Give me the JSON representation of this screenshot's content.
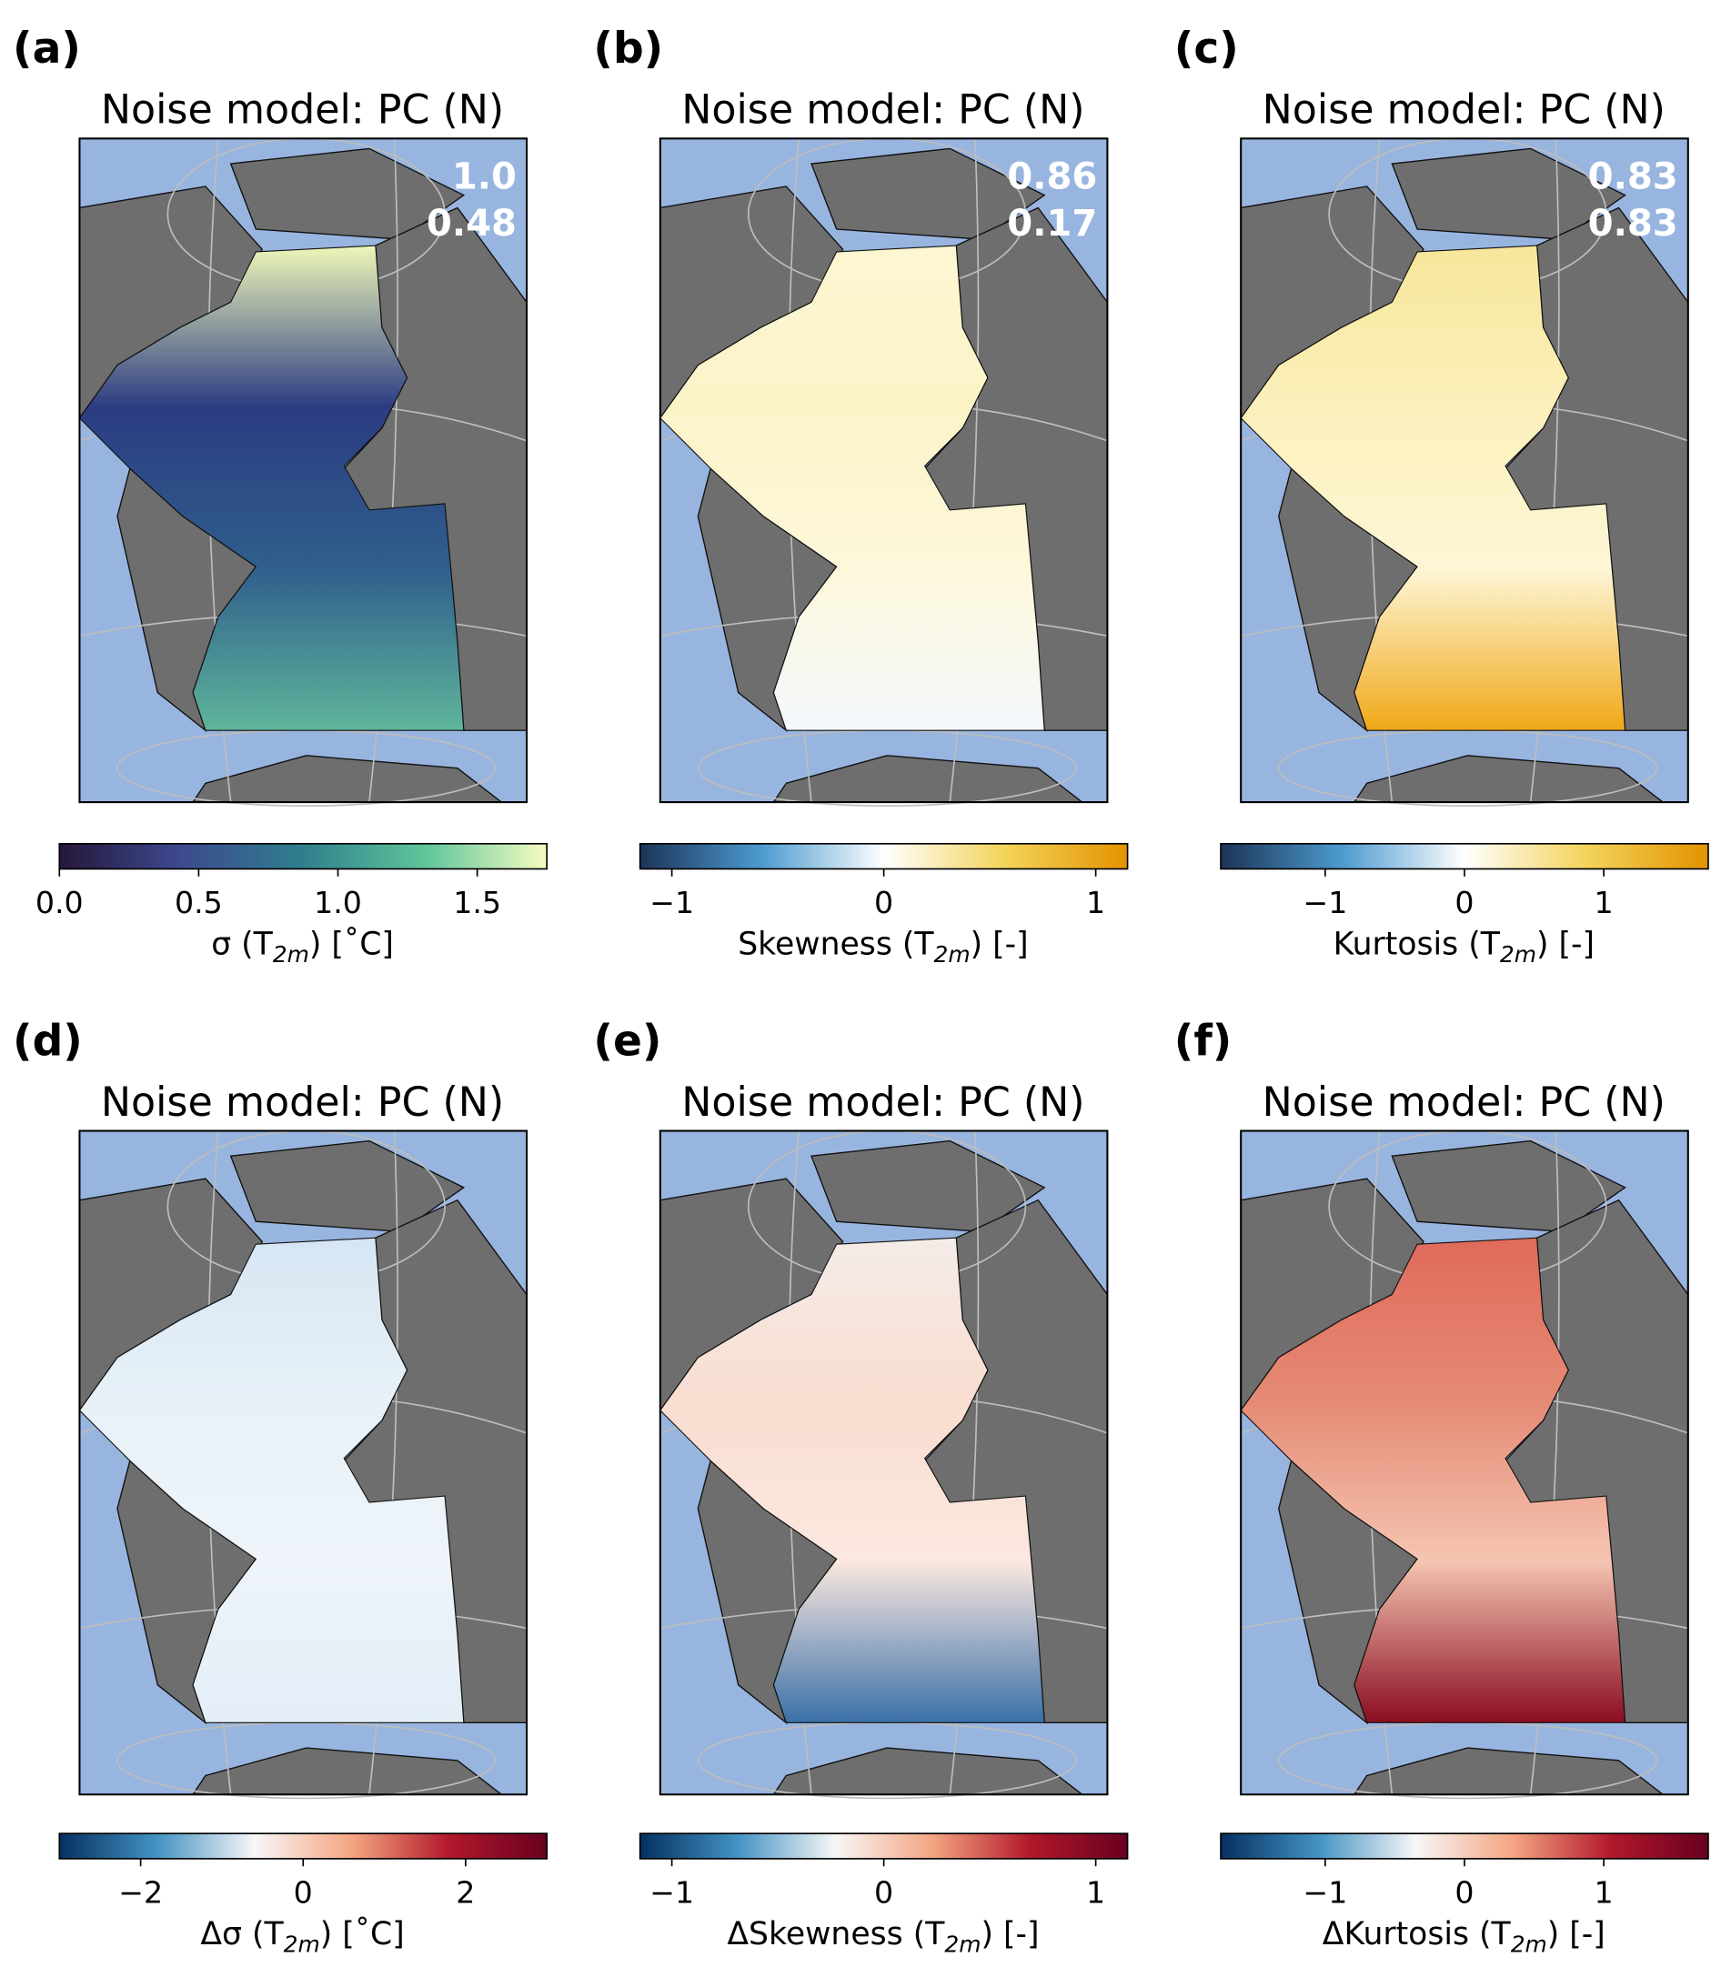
{
  "chart_data": [
    {
      "type": "map",
      "panel_label": "(a)",
      "title": "Noise model: PC (N)",
      "annotations": [
        "1.0",
        "0.48"
      ],
      "xlabel": {
        "pre": "σ (T",
        "sub": "2m",
        "post": ") [˚C]"
      },
      "xlim": [
        0,
        1.75
      ],
      "xticks": [
        {
          "value": 0,
          "label": "0.0"
        },
        0.5,
        {
          "value": 1,
          "label": "1.0"
        },
        1.5
      ],
      "colormap": [
        "#26173a",
        "#3d4a8f",
        "#2f7f8c",
        "#5fc59b",
        "#f6fcc2"
      ],
      "field_colors": [
        "#eef7b8",
        "#2c3c82",
        "#2f5f8c",
        "#5fb59b"
      ]
    },
    {
      "type": "map",
      "panel_label": "(b)",
      "title": "Noise model: PC (N)",
      "annotations": [
        "0.86",
        "0.17"
      ],
      "xlabel": {
        "pre": "Skewness (T",
        "sub": "2m",
        "post": ") [-]"
      },
      "xlim": [
        -1.15,
        1.15
      ],
      "xticks": [
        {
          "value": -1,
          "label": "−1"
        },
        0,
        1
      ],
      "colormap": [
        "#1c3457",
        "#4d9bd0",
        "#ffffff",
        "#f3d35a",
        "#e39300"
      ],
      "field_colors": [
        "#fdf6d2",
        "#fcf3c8",
        "#fdf8dc",
        "#f4f8fc"
      ]
    },
    {
      "type": "map",
      "panel_label": "(c)",
      "title": "Noise model: PC (N)",
      "annotations": [
        "0.83",
        "0.83"
      ],
      "xlabel": {
        "pre": "Kurtosis (T",
        "sub": "2m",
        "post": ") [-]"
      },
      "xlim": [
        -1.75,
        1.75
      ],
      "xticks": [
        {
          "value": -1,
          "label": "−1"
        },
        0,
        1
      ],
      "colormap": [
        "#1c3457",
        "#4d9bd0",
        "#ffffff",
        "#f3d35a",
        "#e39300"
      ],
      "field_colors": [
        "#f7e69a",
        "#fbf0bb",
        "#fdf6d6",
        "#f0a818"
      ]
    },
    {
      "type": "map",
      "panel_label": "(d)",
      "title": "Noise model: PC (N)",
      "annotations": [],
      "xlabel": {
        "pre": "Δσ (T",
        "sub": "2m",
        "post": ") [˚C]"
      },
      "xlim": [
        -3,
        3
      ],
      "xticks": [
        {
          "value": -2,
          "label": "−2"
        },
        0,
        2
      ],
      "colormap": [
        "#053061",
        "#4393c3",
        "#f7f7f7",
        "#f4a582",
        "#b2182b",
        "#67001f"
      ],
      "field_colors": [
        "#d6e6f3",
        "#e8f1f8",
        "#eef4f9",
        "#e4eef7"
      ]
    },
    {
      "type": "map",
      "panel_label": "(e)",
      "title": "Noise model: PC (N)",
      "annotations": [],
      "xlabel": {
        "pre": "ΔSkewness (T",
        "sub": "2m",
        "post": ") [-]"
      },
      "xlim": [
        -1.15,
        1.15
      ],
      "xticks": [
        {
          "value": -1,
          "label": "−1"
        },
        0,
        1
      ],
      "colormap": [
        "#053061",
        "#4393c3",
        "#f7f7f7",
        "#f4a582",
        "#b2182b",
        "#67001f"
      ],
      "field_colors": [
        "#f4ece8",
        "#f9ddd0",
        "#fbe8df",
        "#3a70a8"
      ]
    },
    {
      "type": "map",
      "panel_label": "(f)",
      "title": "Noise model: PC (N)",
      "annotations": [],
      "xlabel": {
        "pre": "ΔKurtosis (T",
        "sub": "2m",
        "post": ") [-]"
      },
      "xlim": [
        -1.75,
        1.75
      ],
      "xticks": [
        {
          "value": -1,
          "label": "−1"
        },
        0,
        1
      ],
      "colormap": [
        "#053061",
        "#4393c3",
        "#f7f7f7",
        "#f4a582",
        "#b2182b",
        "#67001f"
      ],
      "field_colors": [
        "#e06a5a",
        "#e58a74",
        "#f5c5b2",
        "#8a0c20"
      ]
    }
  ]
}
